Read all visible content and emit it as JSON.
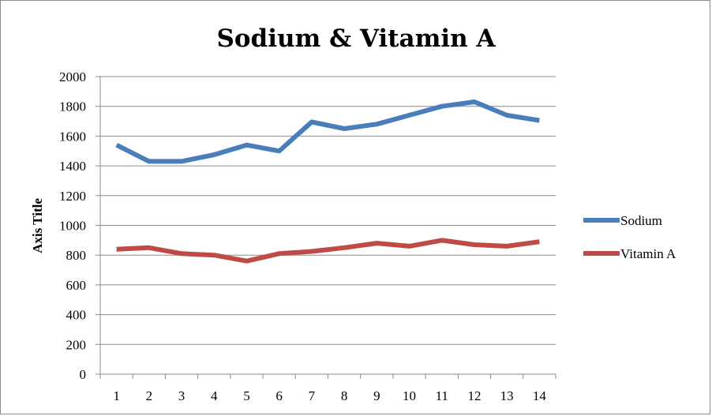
{
  "chart_data": {
    "type": "line",
    "title": "Sodium & Vitamin A",
    "xlabel": "",
    "ylabel": "Axis Title",
    "x": [
      "1",
      "2",
      "3",
      "4",
      "5",
      "6",
      "7",
      "8",
      "9",
      "10",
      "11",
      "12",
      "13",
      "14"
    ],
    "ylim": [
      0,
      2000
    ],
    "yticks": [
      0,
      200,
      400,
      600,
      800,
      1000,
      1200,
      1400,
      1600,
      1800,
      2000
    ],
    "grid": true,
    "legend_position": "right",
    "series": [
      {
        "name": "Sodium",
        "color": "#4a7ebb",
        "values": [
          1540,
          1430,
          1430,
          1475,
          1540,
          1500,
          1695,
          1650,
          1680,
          1740,
          1800,
          1830,
          1740,
          1705
        ]
      },
      {
        "name": "Vitamin A",
        "color": "#be4b48",
        "values": [
          840,
          850,
          810,
          800,
          760,
          810,
          825,
          850,
          880,
          860,
          900,
          870,
          860,
          890
        ]
      }
    ]
  }
}
